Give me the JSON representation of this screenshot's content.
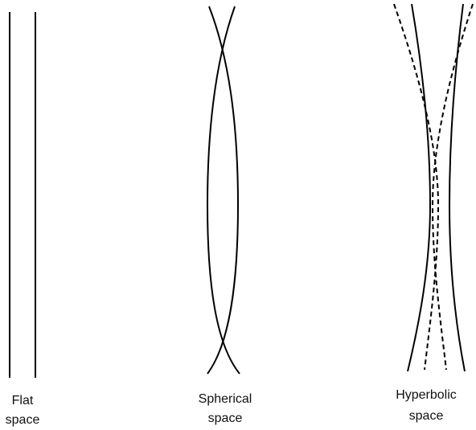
{
  "panels": [
    {
      "label": [
        "Flat",
        "space"
      ]
    },
    {
      "label": [
        "Spherical",
        "space"
      ]
    },
    {
      "label": [
        "Hyperbolic",
        "space"
      ]
    }
  ]
}
